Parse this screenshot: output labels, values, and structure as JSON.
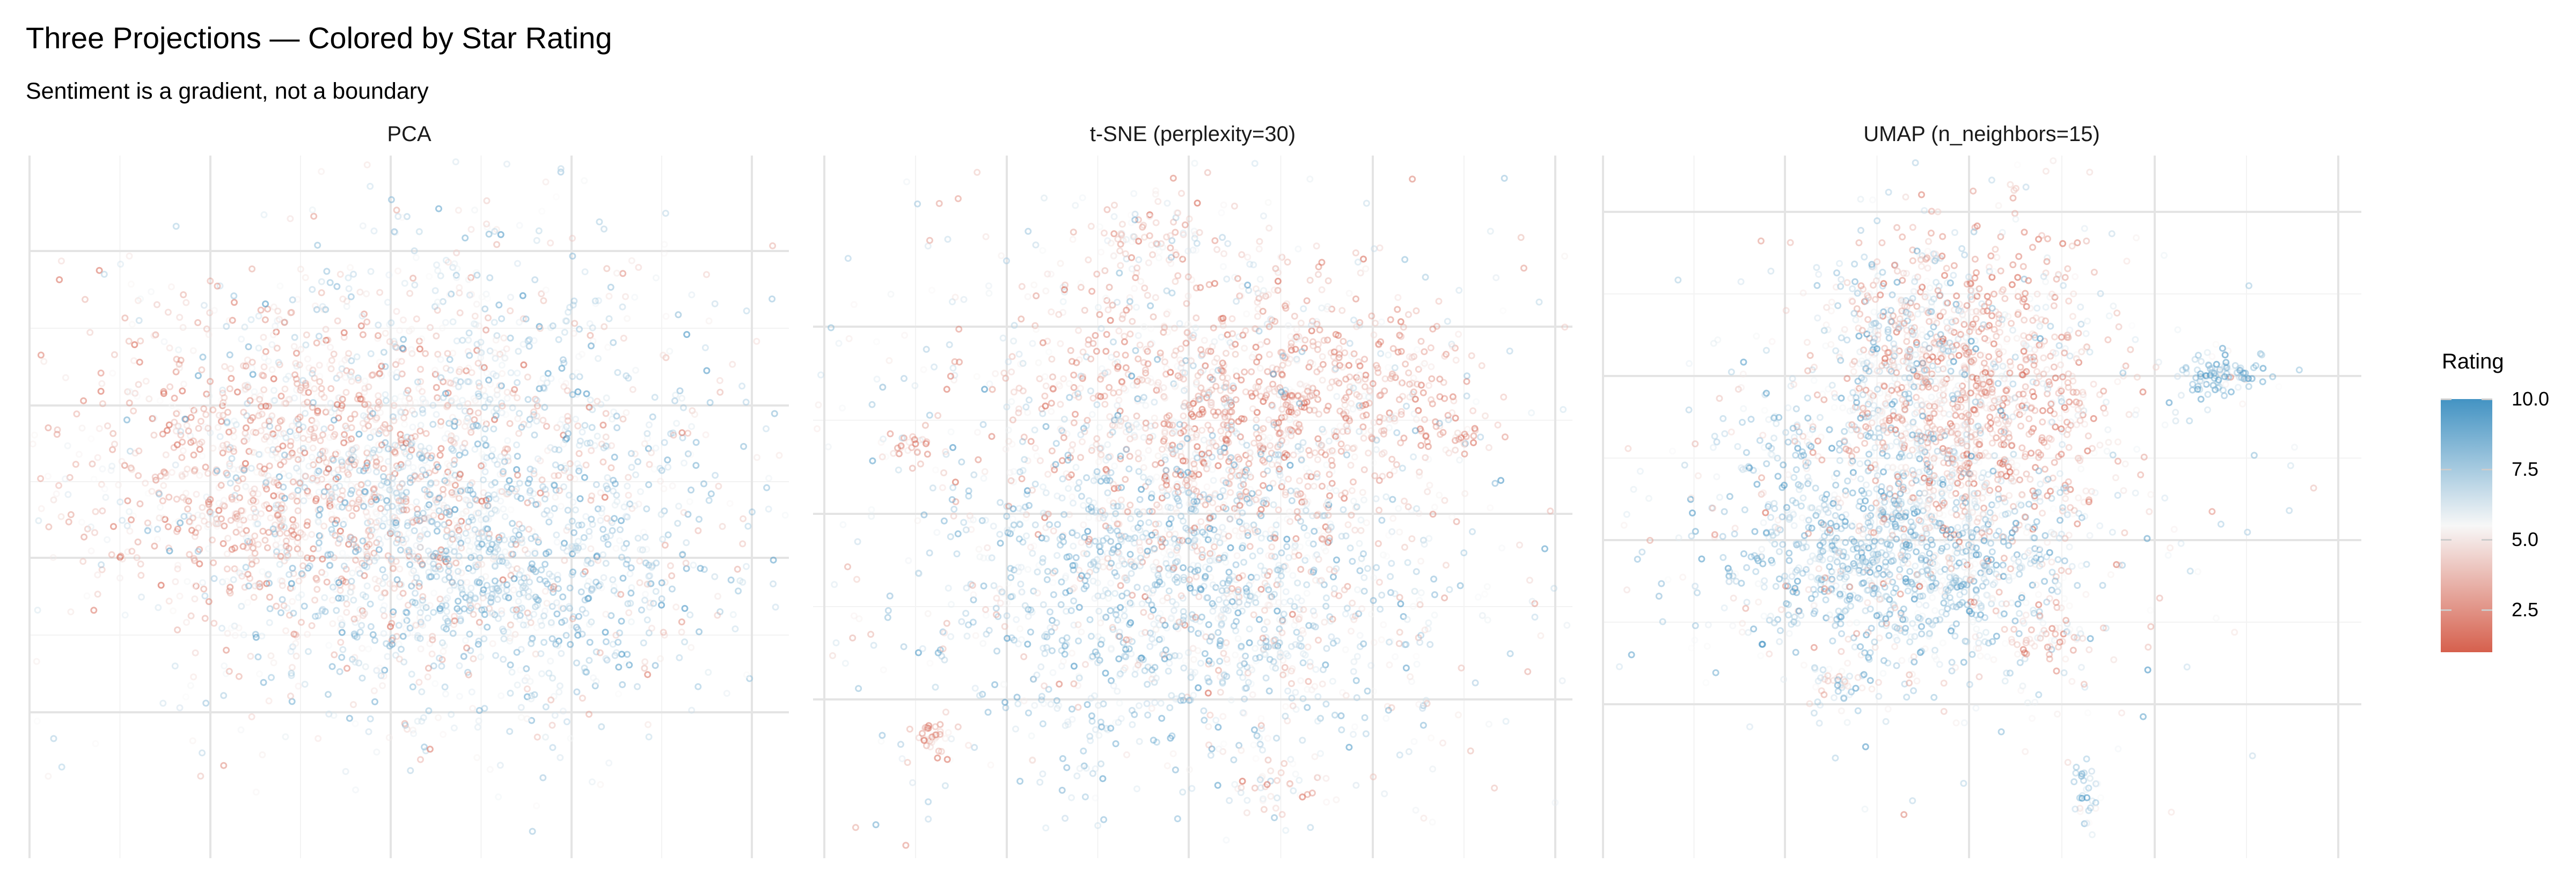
{
  "title": "Three Projections — Colored by Star Rating",
  "subtitle": "Sentiment is a gradient, not a boundary",
  "legend": {
    "title": "Rating",
    "ticks": [
      "10.0",
      "7.5",
      "5.0",
      "2.5"
    ],
    "tick_values": [
      10,
      7.5,
      5,
      2.5
    ],
    "range": [
      1,
      10
    ],
    "colors": {
      "low": "#D6604D",
      "mid": "#F7F7F7",
      "high": "#4393C3"
    },
    "midpoint": 5.5
  },
  "chart_data": [
    {
      "type": "scatter",
      "title": "PCA",
      "xlabel": "",
      "ylabel": "",
      "xlim": [
        -4,
        4
      ],
      "ylim": [
        -4,
        4
      ],
      "grid": true,
      "tick_labels_shown": false,
      "color_by": "Rating",
      "clusters": [
        {
          "center": [
            -1.2,
            0.4
          ],
          "sd": [
            1.2,
            0.9
          ],
          "n": 1300,
          "rating": 3.5
        },
        {
          "center": [
            0.8,
            -0.6
          ],
          "sd": [
            1.2,
            0.9
          ],
          "n": 1300,
          "rating": 7.5
        },
        {
          "center": [
            0.8,
            1.4
          ],
          "sd": [
            1.4,
            1.1
          ],
          "n": 700,
          "rating": 6.2
        },
        {
          "center": [
            -0.3,
            -0.2
          ],
          "sd": [
            1.9,
            1.4
          ],
          "n": 700,
          "rating": 5.5
        }
      ]
    },
    {
      "type": "scatter",
      "title": "t-SNE (perplexity=30)",
      "xlabel": "",
      "ylabel": "",
      "xlim": [
        -4,
        4
      ],
      "ylim": [
        -4,
        4
      ],
      "grid": true,
      "tick_labels_shown": false,
      "color_by": "Rating",
      "clusters": [
        {
          "center": [
            0.2,
            1.0
          ],
          "sd": [
            1.1,
            0.9
          ],
          "n": 1100,
          "rating": 3.2
        },
        {
          "center": [
            1.7,
            1.3
          ],
          "sd": [
            0.6,
            0.5
          ],
          "n": 300,
          "rating": 3.0
        },
        {
          "center": [
            -0.6,
            -0.8
          ],
          "sd": [
            1.1,
            1.0
          ],
          "n": 1000,
          "rating": 7.8
        },
        {
          "center": [
            0.9,
            -1.2
          ],
          "sd": [
            1.0,
            0.9
          ],
          "n": 500,
          "rating": 6.3
        },
        {
          "center": [
            0,
            0
          ],
          "sd": [
            2.2,
            2.0
          ],
          "n": 900,
          "rating": 6.0
        },
        {
          "center": [
            -0.4,
            3.0
          ],
          "sd": [
            0.4,
            0.3
          ],
          "n": 120,
          "rating": 4.5
        },
        {
          "center": [
            -2.7,
            -2.6
          ],
          "sd": [
            0.15,
            0.12
          ],
          "n": 40,
          "rating": 2.5
        },
        {
          "center": [
            -3.0,
            0.7
          ],
          "sd": [
            0.12,
            0.12
          ],
          "n": 30,
          "rating": 2.5
        },
        {
          "center": [
            0.8,
            -3.2
          ],
          "sd": [
            0.3,
            0.15
          ],
          "n": 50,
          "rating": 5.0
        },
        {
          "center": [
            2.8,
            0.8
          ],
          "sd": [
            0.15,
            0.15
          ],
          "n": 30,
          "rating": 3.0
        }
      ]
    },
    {
      "type": "scatter",
      "title": "UMAP (n_neighbors=15)",
      "xlabel": "",
      "ylabel": "",
      "xlim": [
        -4,
        4
      ],
      "ylim": [
        -4,
        4
      ],
      "grid": true,
      "tick_labels_shown": false,
      "color_by": "Rating",
      "clusters": [
        {
          "center": [
            -0.1,
            1.3
          ],
          "sd": [
            0.7,
            0.9
          ],
          "n": 1100,
          "rating": 3.0
        },
        {
          "center": [
            -0.9,
            -0.6
          ],
          "sd": [
            0.9,
            0.6
          ],
          "n": 1100,
          "rating": 8.0
        },
        {
          "center": [
            -0.8,
            1.6
          ],
          "sd": [
            0.5,
            0.8
          ],
          "n": 400,
          "rating": 7.0
        },
        {
          "center": [
            -0.5,
            0.2
          ],
          "sd": [
            1.3,
            1.4
          ],
          "n": 900,
          "rating": 5.8
        },
        {
          "center": [
            2.5,
            1.5
          ],
          "sd": [
            0.3,
            0.15
          ],
          "n": 120,
          "rating": 8.5
        },
        {
          "center": [
            1.1,
            -3.3
          ],
          "sd": [
            0.08,
            0.25
          ],
          "n": 40,
          "rating": 8.0
        },
        {
          "center": [
            -2.2,
            0.8
          ],
          "sd": [
            0.3,
            0.3
          ],
          "n": 60,
          "rating": 7.5
        },
        {
          "center": [
            0.7,
            -1.5
          ],
          "sd": [
            0.25,
            0.2
          ],
          "n": 60,
          "rating": 3.5
        },
        {
          "center": [
            -1.6,
            -2.0
          ],
          "sd": [
            0.2,
            0.2
          ],
          "n": 50,
          "rating": 6.5
        }
      ]
    }
  ]
}
